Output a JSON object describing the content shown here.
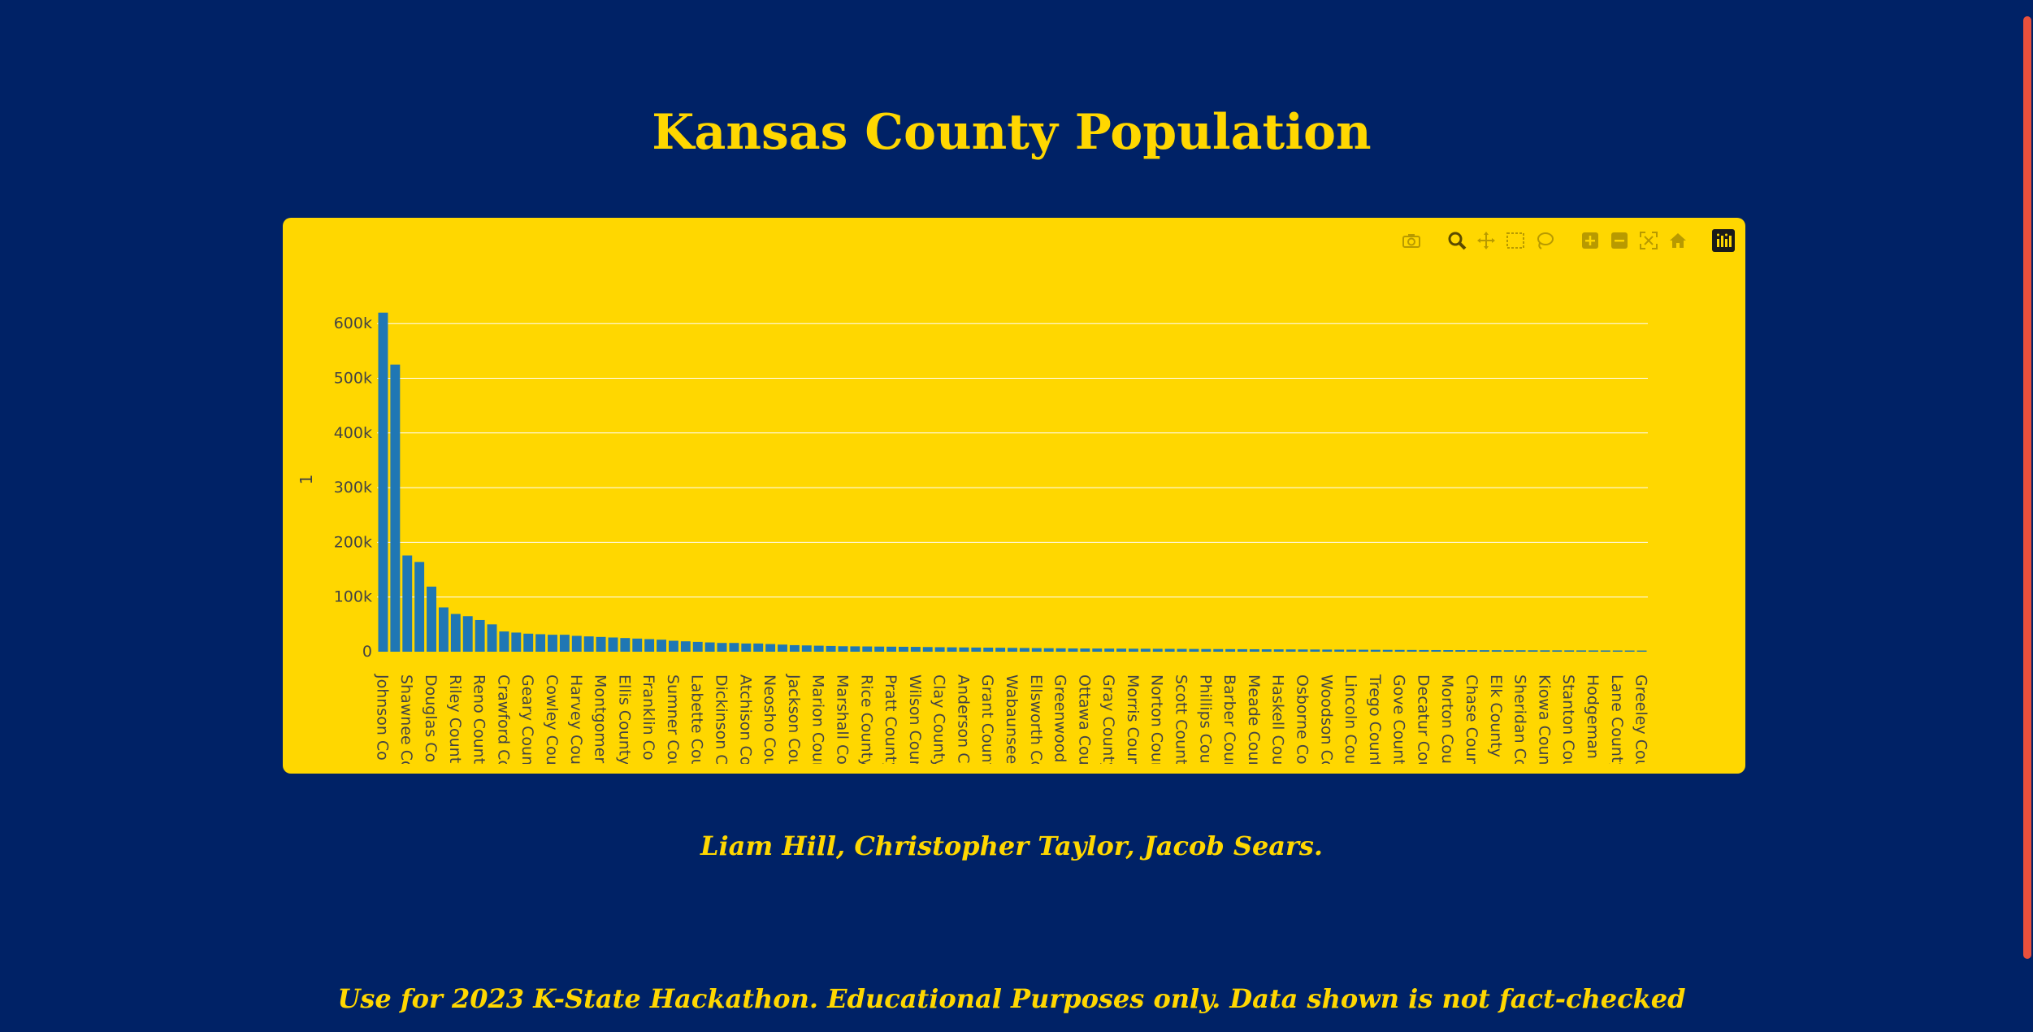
{
  "page": {
    "title": "Kansas County Population",
    "credits": "Liam Hill, Christopher Taylor, Jacob Sears.",
    "footer": "Use for 2023 K-State Hackathon. Educational Purposes only. Data shown is not fact-checked"
  },
  "colors": {
    "background": "#002266",
    "accent": "#ffd700",
    "bar": "#1f77b4",
    "scrollbar": "#e8503c"
  },
  "modebar": {
    "icons": [
      "camera-icon",
      "zoom-icon",
      "pan-icon",
      "box-select-icon",
      "lasso-select-icon",
      "zoom-in-icon",
      "zoom-out-icon",
      "autoscale-icon",
      "home-icon",
      "plotly-logo-icon"
    ]
  },
  "chart_data": {
    "type": "bar",
    "title": "",
    "xlabel": "",
    "ylabel": "1",
    "ylim": [
      0,
      630000
    ],
    "yticks": [
      0,
      100000,
      200000,
      300000,
      400000,
      500000,
      600000
    ],
    "ytick_labels": [
      "0",
      "100k",
      "200k",
      "300k",
      "400k",
      "500k",
      "600k"
    ],
    "grid": true,
    "tick_labels_shown": [
      "Johnson Co",
      "Shawnee Co",
      "Douglas Co",
      "Riley County",
      "Reno County",
      "Crawford Co",
      "Geary Count",
      "Cowley Coun",
      "Harvey Coun",
      "Montgomery",
      "Ellis County",
      "Franklin Co",
      "Sumner Cou",
      "Labette Cou",
      "Dickinson Co",
      "Atchison Co",
      "Neosho Cou",
      "Jackson Cou",
      "Marion Coun",
      "Marshall Co",
      "Rice County",
      "Pratt County",
      "Wilson Coun",
      "Clay County",
      "Anderson Co",
      "Grant Count",
      "Wabaunsee",
      "Ellsworth Co",
      "Greenwood",
      "Ottawa Coun",
      "Gray County",
      "Morris Coun",
      "Norton Coun",
      "Scott Count",
      "Phillips Cour",
      "Barber Coun",
      "Meade Coun",
      "Haskell Cour",
      "Osborne Co",
      "Woodson Co",
      "Lincoln Coun",
      "Trego Count",
      "Gove County",
      "Decatur Cou",
      "Morton Cou",
      "Chase Count",
      "Elk County",
      "Sheridan Co",
      "Kiowa Coun",
      "Stanton Cou",
      "Hodgeman C",
      "Lane County",
      "Greeley Cou"
    ],
    "values": [
      620000,
      525000,
      176000,
      164000,
      119000,
      81000,
      69000,
      65000,
      58000,
      50000,
      37000,
      35000,
      33000,
      32000,
      31000,
      31000,
      29000,
      28000,
      27000,
      26000,
      25000,
      24000,
      23000,
      22000,
      20000,
      19000,
      18000,
      17000,
      16000,
      16000,
      15000,
      15000,
      14000,
      13000,
      12000,
      11500,
      11000,
      10500,
      10000,
      9800,
      9600,
      9400,
      9200,
      9000,
      8800,
      8500,
      8200,
      8000,
      7800,
      7600,
      7400,
      7200,
      7000,
      6800,
      6600,
      6400,
      6200,
      6000,
      5900,
      5800,
      5700,
      5600,
      5500,
      5400,
      5300,
      5200,
      5100,
      5000,
      4900,
      4800,
      4700,
      4600,
      4500,
      4400,
      4300,
      4200,
      4100,
      4000,
      3900,
      3800,
      3700,
      3600,
      3500,
      3400,
      3300,
      3200,
      3100,
      3000,
      2950,
      2900,
      2850,
      2800,
      2750,
      2700,
      2650,
      2600,
      2550,
      2500,
      2450,
      2400,
      2350,
      2300,
      2250,
      2200,
      2150
    ]
  }
}
